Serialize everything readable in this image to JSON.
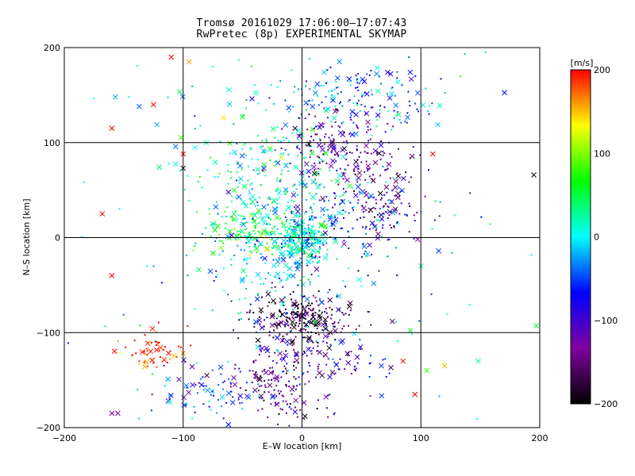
{
  "chart_data": {
    "type": "scatter",
    "title": "Tromsø 20161029 17:06:00–17:07:43",
    "subtitle": "RwPretec (8p) EXPERIMENTAL SKYMAP",
    "xlabel": "E–W location [km]",
    "ylabel": "N–S location [km]",
    "xlim": [
      -200,
      200
    ],
    "ylim": [
      -200,
      200
    ],
    "x_ticks": [
      "−200",
      "−100",
      "0",
      "100",
      "200"
    ],
    "y_ticks": [
      "−200",
      "−100",
      "0",
      "100",
      "200"
    ],
    "grid": true,
    "colorbar": {
      "label": "[m/s]",
      "range": [
        -200,
        200
      ],
      "ticks": [
        "200",
        "100",
        "0",
        "−100",
        "−200"
      ],
      "colormap": [
        "#000000",
        "#8000a0",
        "#0000ff",
        "#00ffff",
        "#00ff00",
        "#ffff00",
        "#ff0000"
      ]
    },
    "markers": {
      "small": "dot",
      "large": "x"
    },
    "clusters": [
      {
        "cx": 0,
        "cy": 0,
        "sx": 12,
        "sy": 14,
        "vel": 10,
        "n": 220
      },
      {
        "cx": -45,
        "cy": 5,
        "sx": 18,
        "sy": 12,
        "vel": 70,
        "n": 90
      },
      {
        "cx": -30,
        "cy": 60,
        "sx": 30,
        "sy": 40,
        "vel": 20,
        "n": 230
      },
      {
        "cx": 50,
        "cy": 150,
        "sx": 35,
        "sy": 18,
        "vel": -40,
        "n": 160
      },
      {
        "cx": 25,
        "cy": 100,
        "sx": 18,
        "sy": 14,
        "vel": -130,
        "n": 110
      },
      {
        "cx": 65,
        "cy": 50,
        "sx": 20,
        "sy": 28,
        "vel": -130,
        "n": 150
      },
      {
        "cx": 40,
        "cy": 20,
        "sx": 30,
        "sy": 20,
        "vel": -60,
        "n": 110
      },
      {
        "cx": 0,
        "cy": -85,
        "sx": 20,
        "sy": 12,
        "vel": -180,
        "n": 210
      },
      {
        "cx": -20,
        "cy": -150,
        "sx": 20,
        "sy": 22,
        "vel": -140,
        "n": 150
      },
      {
        "cx": -75,
        "cy": -160,
        "sx": 25,
        "sy": 15,
        "vel": -60,
        "n": 80
      },
      {
        "cx": -125,
        "cy": -120,
        "sx": 15,
        "sy": 12,
        "vel": 190,
        "n": 60
      },
      {
        "cx": 10,
        "cy": -120,
        "sx": 30,
        "sy": 30,
        "vel": -100,
        "n": 130
      },
      {
        "cx": -30,
        "cy": -40,
        "sx": 25,
        "sy": 25,
        "vel": -20,
        "n": 90
      },
      {
        "cx": -10,
        "cy": 30,
        "sx": 35,
        "sy": 30,
        "vel": 0,
        "n": 120
      },
      {
        "cx": 0,
        "cy": 0,
        "sx": 110,
        "sy": 110,
        "vel": 0,
        "n": 160
      }
    ],
    "isolated_x_markers": [
      {
        "x": -157,
        "y": 148,
        "vel": -20
      },
      {
        "x": -137,
        "y": 138,
        "vel": -40
      },
      {
        "x": -160,
        "y": 115,
        "vel": 200
      },
      {
        "x": -125,
        "y": 140,
        "vel": 200
      },
      {
        "x": -168,
        "y": 25,
        "vel": 200
      },
      {
        "x": -160,
        "y": -40,
        "vel": 200
      },
      {
        "x": -110,
        "y": 190,
        "vel": 200
      },
      {
        "x": -100,
        "y": 88,
        "vel": 200
      },
      {
        "x": -95,
        "y": 185,
        "vel": 160
      },
      {
        "x": 110,
        "y": 88,
        "vel": 200
      },
      {
        "x": 95,
        "y": -165,
        "vel": 200
      },
      {
        "x": 85,
        "y": -130,
        "vel": 200
      },
      {
        "x": 120,
        "y": -135,
        "vel": 150
      },
      {
        "x": 105,
        "y": -140,
        "vel": 80
      },
      {
        "x": 100,
        "y": -30,
        "vel": 20
      },
      {
        "x": 195,
        "y": 66,
        "vel": -200
      },
      {
        "x": -100,
        "y": 73,
        "vel": -200
      },
      {
        "x": -160,
        "y": -185,
        "vel": -130
      },
      {
        "x": -155,
        "y": -185,
        "vel": -130
      }
    ]
  }
}
